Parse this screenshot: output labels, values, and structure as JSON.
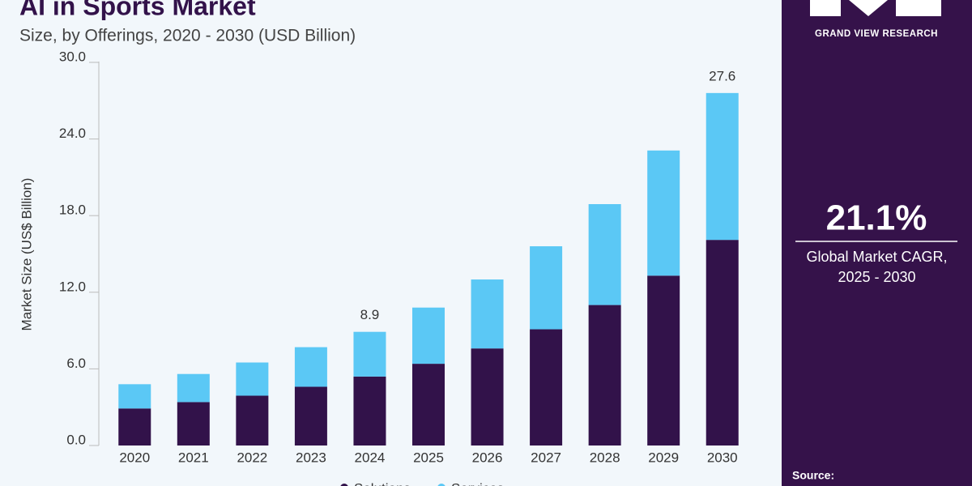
{
  "chart_data": {
    "type": "stacked-bar",
    "title": "AI in Sports Market",
    "subtitle": "Size, by Offerings, 2020 - 2030 (USD Billion)",
    "y_label": "Market Size (US$ Billion)",
    "categories": [
      "2020",
      "2021",
      "2022",
      "2023",
      "2024",
      "2025",
      "2026",
      "2027",
      "2028",
      "2029",
      "2030"
    ],
    "series": [
      {
        "name": "Solutions",
        "color": "#32124a",
        "values": [
          2.9,
          3.4,
          3.9,
          4.6,
          5.4,
          6.4,
          7.6,
          9.1,
          11.0,
          13.3,
          16.1
        ]
      },
      {
        "name": "Services",
        "color": "#5bc8f5",
        "values": [
          1.9,
          2.2,
          2.6,
          3.1,
          3.5,
          4.4,
          5.4,
          6.5,
          7.9,
          9.8,
          11.5
        ]
      }
    ],
    "annotations": [
      {
        "category": "2024",
        "value": 8.9
      },
      {
        "category": "2030",
        "value": 27.6
      }
    ],
    "ylim": [
      0,
      30
    ],
    "yticks": [
      {
        "value": 0,
        "label": "0.0"
      },
      {
        "value": 6,
        "label": "6.0"
      },
      {
        "value": 12,
        "label": "12.0"
      },
      {
        "value": 18,
        "label": "18.0"
      },
      {
        "value": 24,
        "label": "24.0"
      },
      {
        "value": 30,
        "label": "30.0"
      }
    ]
  },
  "sidebar": {
    "brand": "GRAND VIEW RESEARCH",
    "cagr": "21.1%",
    "cagr_label": "Global Market CAGR, 2025 - 2030",
    "source": "Source:"
  }
}
